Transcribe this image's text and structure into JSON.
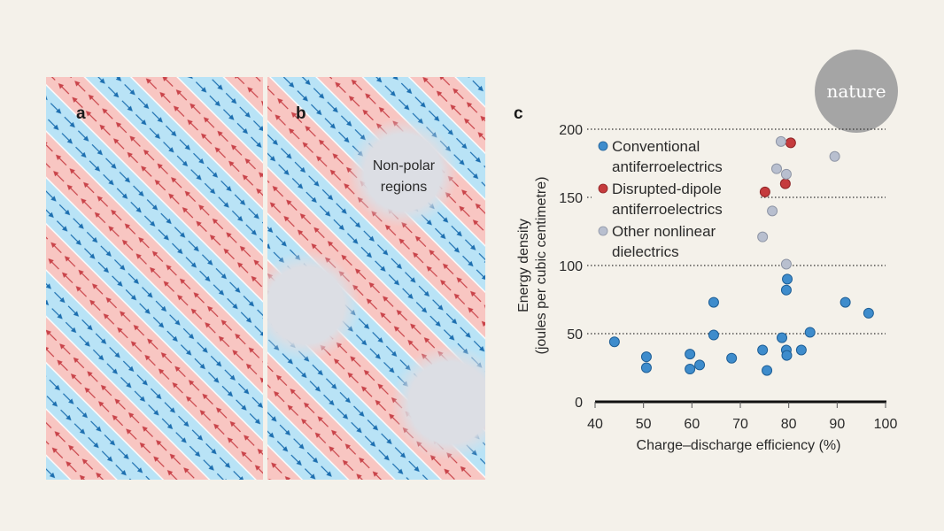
{
  "panels": {
    "a": {
      "label": "a"
    },
    "b": {
      "label": "b",
      "annotation_line1": "Non-polar",
      "annotation_line2": "regions"
    },
    "c": {
      "label": "c"
    }
  },
  "logo": {
    "text": "nature"
  },
  "colors": {
    "blue_stripe": "#b9e3f6",
    "red_stripe": "#f8c6c2",
    "blue_arrow": "#1d6fb0",
    "red_arrow": "#c9444a",
    "conventional": "#3e8ccc",
    "disrupted": "#c53b3d",
    "other": "#b8bfcf",
    "nonpolar": "#dcdee4"
  },
  "chart_data": {
    "type": "scatter",
    "title": "",
    "xlabel": "Charge–discharge efficiency (%)",
    "ylabel_line1": "Energy density",
    "ylabel_line2": "(joules per cubic centimetre)",
    "xlim": [
      40,
      100
    ],
    "ylim": [
      0,
      200
    ],
    "xticks": [
      "40",
      "50",
      "60",
      "70",
      "80",
      "90",
      "100"
    ],
    "yticks": [
      "0",
      "50",
      "100",
      "150",
      "200"
    ],
    "grid": "dotted horizontal at 50, 100, 150, 200",
    "legend_placement": "top-left",
    "series": [
      {
        "name_line1": "Conventional",
        "name_line2": "antiferroelectrics",
        "color": "#3e8ccc",
        "points": [
          [
            44,
            44
          ],
          [
            50.6,
            33
          ],
          [
            50.6,
            25
          ],
          [
            59.6,
            35
          ],
          [
            59.6,
            24
          ],
          [
            61.6,
            27
          ],
          [
            64.5,
            73
          ],
          [
            64.5,
            49
          ],
          [
            68.2,
            32
          ],
          [
            74.6,
            38
          ],
          [
            75.5,
            23
          ],
          [
            78.6,
            47
          ],
          [
            79.5,
            38
          ],
          [
            79.6,
            34
          ],
          [
            79.7,
            90
          ],
          [
            79.5,
            82
          ],
          [
            82.6,
            38
          ],
          [
            84.4,
            51
          ],
          [
            91.7,
            73
          ],
          [
            96.5,
            65
          ]
        ]
      },
      {
        "name_line1": "Disrupted-dipole",
        "name_line2": "antiferroelectrics",
        "color": "#c53b3d",
        "points": [
          [
            80.4,
            190
          ],
          [
            79.3,
            160
          ],
          [
            75.1,
            154
          ]
        ]
      },
      {
        "name_line1": "Other nonlinear",
        "name_line2": "dielectrics",
        "color": "#b8bfcf",
        "points": [
          [
            78.4,
            191
          ],
          [
            89.5,
            180
          ],
          [
            77.5,
            171
          ],
          [
            79.5,
            167
          ],
          [
            76.6,
            140
          ],
          [
            74.6,
            121
          ],
          [
            79.5,
            101
          ]
        ]
      }
    ]
  }
}
